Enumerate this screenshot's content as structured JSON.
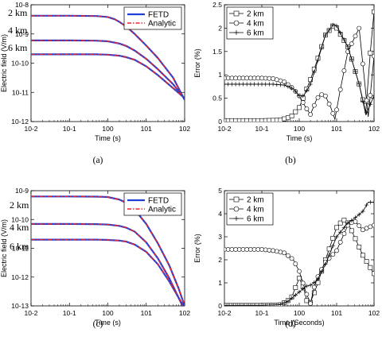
{
  "chart_data": [
    {
      "panel": "(a)",
      "type": "line",
      "xlabel": "Time (s)",
      "ylabel": "Electric field (V/m)",
      "xscale": "log",
      "yscale": "log",
      "xlim": [
        0.01,
        100
      ],
      "ylim": [
        1e-12,
        1e-08
      ],
      "xticks": [
        "10-2",
        "10-1",
        "100",
        "101",
        "102"
      ],
      "yticks": [
        "10-8",
        "10-9",
        "10-10",
        "10-11",
        "10-12"
      ],
      "legend": {
        "placement": "top-right",
        "entries": [
          {
            "label": "FETD",
            "color": "#1f3fd6",
            "dash": "solid"
          },
          {
            "label": "Analytic",
            "color": "#e8262b",
            "dash": "dashdot"
          }
        ]
      },
      "annotations": [
        "2 km",
        "4 km",
        "6 km"
      ],
      "series": [
        {
          "x": [
            0.01,
            0.1,
            0.5,
            1,
            1.5,
            2,
            3,
            5,
            10,
            20,
            50,
            100
          ],
          "y": [
            4.2e-09,
            4.2e-09,
            4.1e-09,
            3.8e-09,
            3.2e-09,
            2.6e-09,
            1.8e-09,
            1e-09,
            4e-10,
            1.5e-10,
            3.2e-11,
            5.5e-12
          ]
        },
        {
          "x": [
            0.01,
            0.1,
            0.5,
            1,
            2,
            3,
            5,
            10,
            20,
            50,
            100
          ],
          "y": [
            6e-10,
            6e-10,
            5.9e-10,
            5.6e-10,
            4.7e-10,
            3.9e-10,
            2.7e-10,
            1.4e-10,
            6.2e-11,
            1.9e-11,
            6e-12
          ]
        },
        {
          "x": [
            0.01,
            0.1,
            0.5,
            1,
            2,
            3,
            5,
            10,
            20,
            50,
            100
          ],
          "y": [
            2e-10,
            2e-10,
            2e-10,
            1.95e-10,
            1.8e-10,
            1.6e-10,
            1.3e-10,
            7.8e-11,
            3.9e-11,
            1.4e-11,
            6.3e-12
          ]
        }
      ]
    },
    {
      "panel": "(b)",
      "type": "line",
      "xlabel": "Time (s)",
      "ylabel": "Error (%)",
      "xscale": "log",
      "xlim": [
        0.01,
        100
      ],
      "ylim": [
        0,
        2.5
      ],
      "xticks": [
        "10-2",
        "10-1",
        "100",
        "101",
        "102"
      ],
      "yticks": [
        "0",
        "0.5",
        "1",
        "1.5",
        "2",
        "2.5"
      ],
      "legend": {
        "placement": "top-left",
        "entries": [
          {
            "label": "2 km",
            "marker": "square"
          },
          {
            "label": "4 km",
            "marker": "circle"
          },
          {
            "label": "6 km",
            "marker": "plus"
          }
        ]
      },
      "series": [
        {
          "x": [
            0.01,
            0.1,
            0.3,
            0.6,
            1,
            2,
            3,
            5,
            8,
            10,
            20,
            40,
            60,
            80,
            100
          ],
          "y": [
            0.02,
            0.02,
            0.03,
            0.1,
            0.3,
            0.9,
            1.3,
            1.85,
            2.05,
            2.0,
            1.6,
            0.8,
            0.2,
            1.5,
            2.35
          ]
        },
        {
          "x": [
            0.01,
            0.1,
            0.2,
            0.4,
            0.7,
            1,
            1.5,
            2,
            3,
            4,
            5,
            7,
            9,
            12,
            20,
            40,
            70,
            100
          ],
          "y": [
            0.93,
            0.93,
            0.92,
            0.85,
            0.7,
            0.55,
            0.3,
            0.15,
            0.5,
            0.58,
            0.55,
            0.3,
            0.05,
            0.6,
            1.5,
            2.0,
            0.1,
            1.4
          ]
        },
        {
          "x": [
            0.01,
            0.1,
            0.2,
            0.4,
            0.7,
            1,
            1.3,
            2,
            3,
            5,
            8,
            10,
            20,
            40,
            60,
            100
          ],
          "y": [
            0.8,
            0.8,
            0.8,
            0.78,
            0.7,
            0.55,
            0.55,
            0.8,
            1.25,
            1.85,
            2.07,
            2.05,
            1.6,
            0.8,
            0.15,
            0.55
          ]
        }
      ]
    },
    {
      "panel": "(c)",
      "type": "line",
      "xlabel": "Time (s)",
      "ylabel": "Electric field (V/m)",
      "xscale": "log",
      "yscale": "log",
      "xlim": [
        0.01,
        100
      ],
      "ylim": [
        1e-13,
        1e-09
      ],
      "xticks": [
        "10-2",
        "10-1",
        "100",
        "101",
        "102"
      ],
      "yticks": [
        "10-9",
        "10-10",
        "10-11",
        "10-12",
        "10-13"
      ],
      "legend": {
        "placement": "top-right",
        "entries": [
          {
            "label": "FETD",
            "color": "#1f3fd6",
            "dash": "solid"
          },
          {
            "label": "Analytic",
            "color": "#e8262b",
            "dash": "dashdot"
          }
        ]
      },
      "annotations": [
        "2 km",
        "4 km",
        "6 km"
      ],
      "series": [
        {
          "x": [
            0.01,
            0.1,
            0.5,
            1,
            2,
            3,
            5,
            10,
            20,
            40,
            70,
            100
          ],
          "y": [
            6.3e-10,
            6.3e-10,
            6.2e-10,
            6e-10,
            4.9e-10,
            3.8e-10,
            2.2e-10,
            7e-11,
            1.5e-11,
            2.5e-12,
            4e-13,
            1e-13
          ]
        },
        {
          "x": [
            0.01,
            0.1,
            0.5,
            1,
            2,
            3,
            5,
            10,
            20,
            40,
            80,
            100
          ],
          "y": [
            7e-11,
            7e-11,
            6.9e-11,
            6.7e-11,
            6e-11,
            5.2e-11,
            3.8e-11,
            1.6e-11,
            4.5e-12,
            9e-13,
            1.3e-13,
            8e-14
          ]
        },
        {
          "x": [
            0.01,
            0.1,
            0.5,
            1,
            2,
            3,
            5,
            10,
            20,
            40,
            80,
            100
          ],
          "y": [
            2e-11,
            2e-11,
            2e-11,
            1.95e-11,
            1.85e-11,
            1.7e-11,
            1.35e-11,
            7.5e-12,
            2.8e-12,
            7e-13,
            1.4e-13,
            9e-14
          ]
        }
      ]
    },
    {
      "panel": "(d)",
      "type": "line",
      "xlabel": "Time (Seconds)",
      "ylabel": "Error (%)",
      "xscale": "log",
      "xlim": [
        0.01,
        100
      ],
      "ylim": [
        0,
        5
      ],
      "xticks": [
        "10-2",
        "10-1",
        "100",
        "101",
        "102"
      ],
      "yticks": [
        "0",
        "1",
        "2",
        "3",
        "4",
        "5"
      ],
      "legend": {
        "placement": "top-left",
        "entries": [
          {
            "label": "2 km",
            "marker": "square"
          },
          {
            "label": "4 km",
            "marker": "circle"
          },
          {
            "label": "6 km",
            "marker": "plus"
          }
        ]
      },
      "series": [
        {
          "x": [
            0.01,
            0.1,
            0.3,
            0.6,
            1,
            1.3,
            1.6,
            2,
            3,
            5,
            10,
            15,
            20,
            30,
            50,
            100
          ],
          "y": [
            0.02,
            0.02,
            0.03,
            0.3,
            1.2,
            0.8,
            0.2,
            0.15,
            0.9,
            2.0,
            3.4,
            3.75,
            3.6,
            3.0,
            2.2,
            1.4
          ]
        },
        {
          "x": [
            0.01,
            0.1,
            0.2,
            0.4,
            0.7,
            1,
            1.5,
            2,
            2.5,
            3,
            5,
            10,
            20,
            30,
            50,
            70,
            100
          ],
          "y": [
            2.45,
            2.45,
            2.4,
            2.3,
            2.0,
            1.5,
            0.6,
            0.1,
            0.8,
            1.2,
            1.9,
            2.4,
            3.5,
            3.7,
            3.3,
            3.4,
            3.5
          ]
        },
        {
          "x": [
            0.01,
            0.1,
            0.3,
            0.5,
            0.7,
            1,
            1.5,
            2,
            3,
            5,
            10,
            20,
            30,
            50,
            70,
            100
          ],
          "y": [
            0.02,
            0.02,
            0.05,
            0.2,
            0.4,
            0.6,
            0.85,
            0.9,
            1.1,
            1.8,
            3.0,
            3.6,
            3.8,
            4.1,
            4.5,
            4.5
          ]
        }
      ]
    }
  ],
  "panel_labels": [
    "(a)",
    "(b)",
    "(c)",
    "(d)"
  ]
}
